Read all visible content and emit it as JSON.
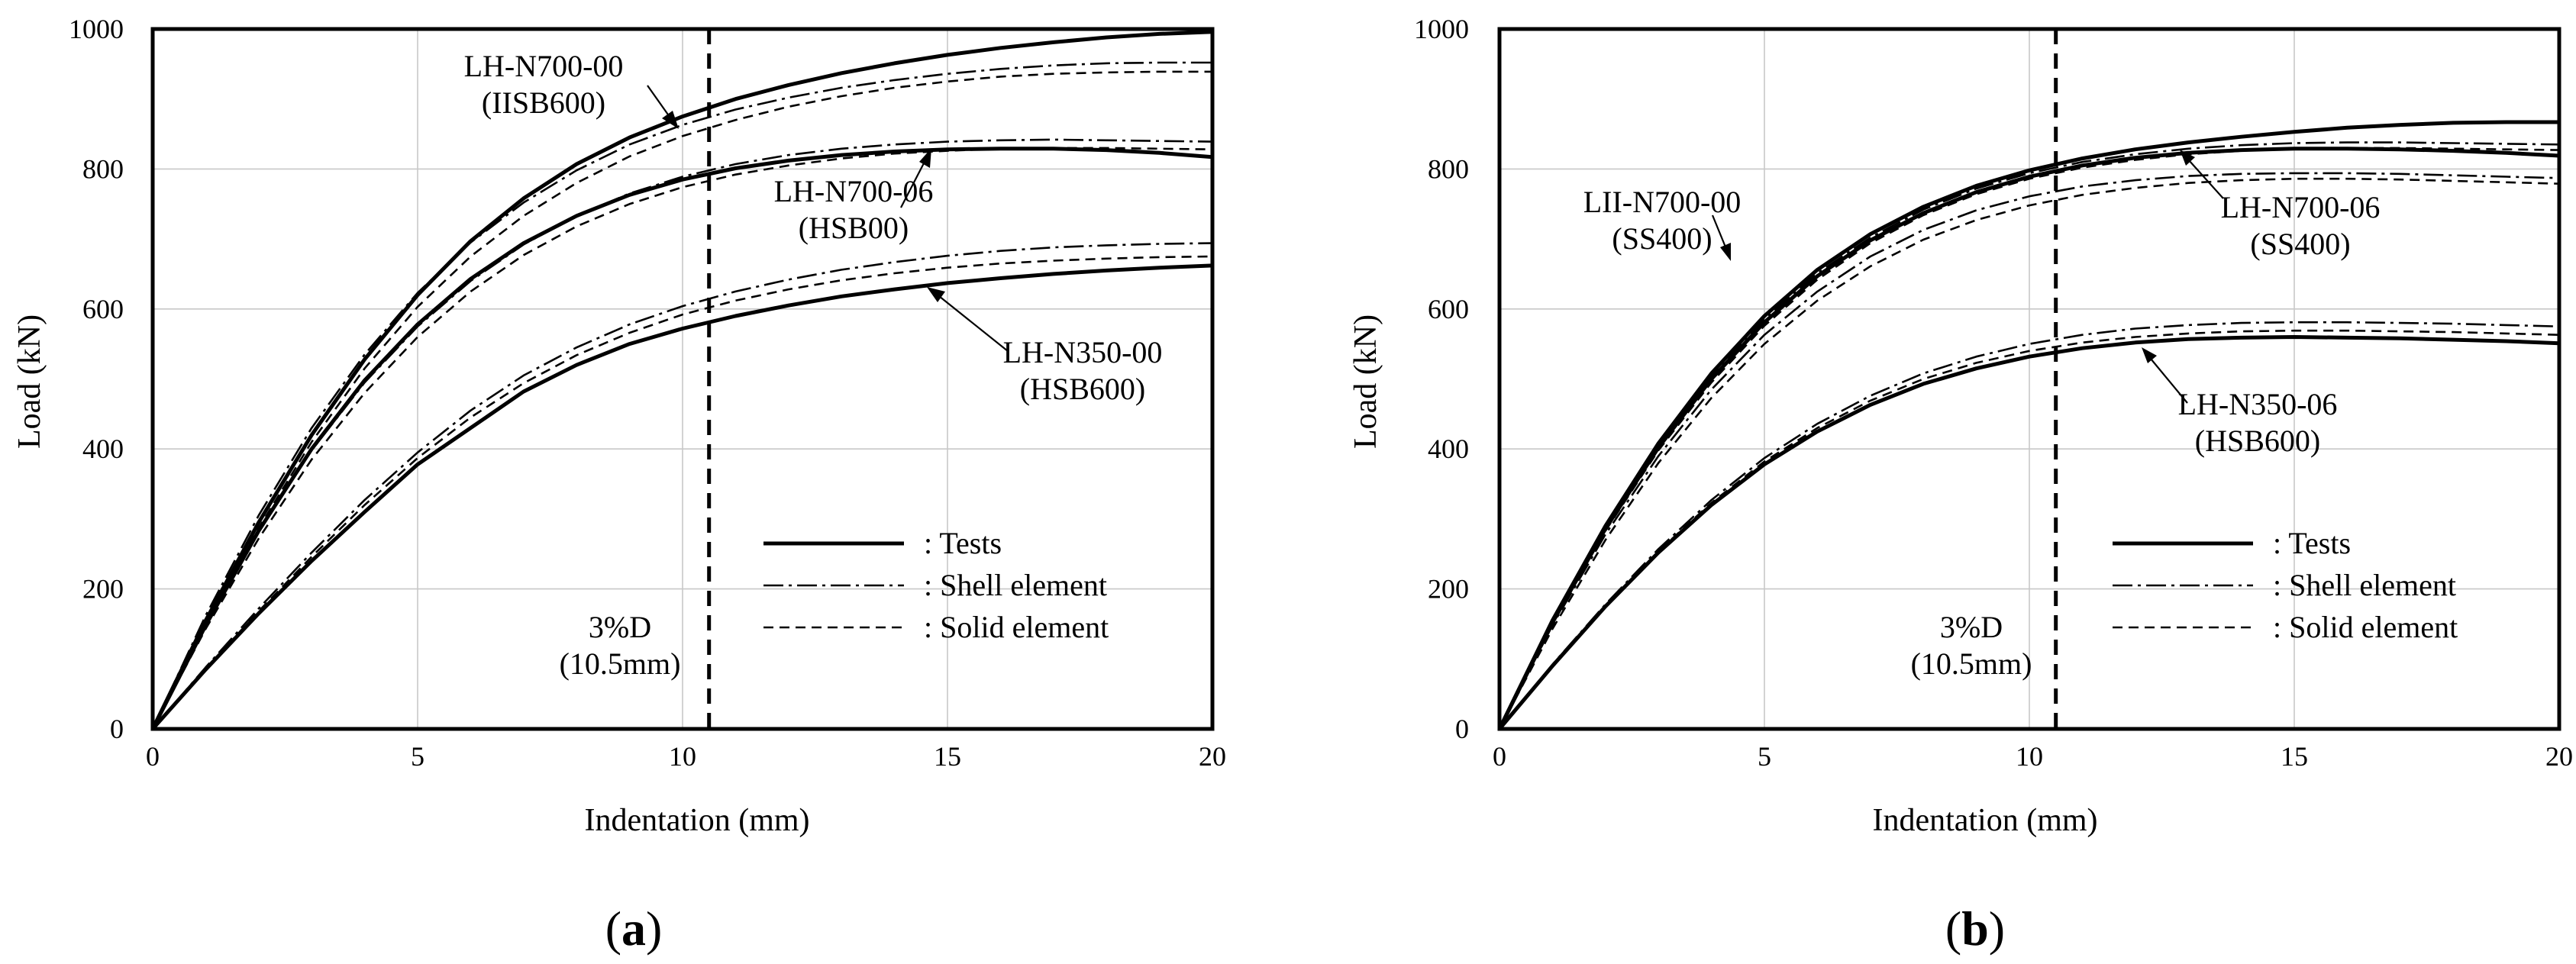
{
  "chart_data": [
    {
      "type": "line",
      "panel_label": "a",
      "title": "",
      "xlabel": "Indentation (mm)",
      "ylabel": "Load (kN)",
      "xlim": [
        0,
        20
      ],
      "ylim": [
        0,
        1000
      ],
      "xticks": [
        "0",
        "5",
        "10",
        "15",
        "20"
      ],
      "yticks": [
        "0",
        "200",
        "400",
        "600",
        "800",
        "1000"
      ],
      "grid": true,
      "reference_line": {
        "x": 10.5,
        "label_line1": "3%D",
        "label_line2": "(10.5mm)"
      },
      "legend": {
        "position": "bottom-right",
        "entries": [
          {
            "style": "tests",
            "label": ": Tests"
          },
          {
            "style": "shell",
            "label": ": Shell element"
          },
          {
            "style": "solid",
            "label": ": Solid element"
          }
        ]
      },
      "x": [
        0,
        1,
        2,
        3,
        4,
        5,
        6,
        7,
        8,
        9,
        10,
        11,
        12,
        13,
        14,
        15,
        16,
        17,
        18,
        19,
        20
      ],
      "series": [
        {
          "name": "LH-N700-00 Tests",
          "style": "tests",
          "values": [
            0,
            155,
            295,
            420,
            528,
            620,
            697,
            758,
            807,
            845,
            875,
            900,
            920,
            937,
            951,
            963,
            973,
            981,
            988,
            993,
            996
          ]
        },
        {
          "name": "LH-N700-00 Shell",
          "style": "shell",
          "values": [
            0,
            162,
            305,
            430,
            535,
            623,
            695,
            752,
            798,
            835,
            863,
            885,
            902,
            916,
            927,
            936,
            943,
            948,
            951,
            952,
            952
          ]
        },
        {
          "name": "LH-N700-00 Solid",
          "style": "solid",
          "values": [
            0,
            150,
            287,
            410,
            515,
            603,
            675,
            733,
            780,
            818,
            847,
            870,
            889,
            904,
            916,
            925,
            932,
            936,
            938,
            939,
            939
          ]
        },
        {
          "name": "LH-N700-06 Tests",
          "style": "tests",
          "values": [
            0,
            148,
            283,
            400,
            498,
            578,
            643,
            694,
            733,
            763,
            785,
            801,
            812,
            820,
            825,
            828,
            829,
            829,
            827,
            823,
            817
          ]
        },
        {
          "name": "LH-N700-06 Shell",
          "style": "shell",
          "values": [
            0,
            150,
            283,
            398,
            495,
            575,
            640,
            692,
            733,
            765,
            789,
            807,
            820,
            829,
            835,
            839,
            841,
            842,
            841,
            840,
            839
          ]
        },
        {
          "name": "LH-N700-06 Solid",
          "style": "solid",
          "values": [
            0,
            143,
            272,
            385,
            480,
            560,
            625,
            677,
            718,
            750,
            774,
            792,
            805,
            815,
            822,
            826,
            829,
            830,
            830,
            829,
            828
          ]
        },
        {
          "name": "LH-N350-00 Tests",
          "style": "tests",
          "values": [
            0,
            85,
            165,
            240,
            310,
            378,
            430,
            482,
            520,
            550,
            572,
            590,
            605,
            618,
            628,
            637,
            644,
            650,
            655,
            659,
            662
          ]
        },
        {
          "name": "LH-N350-00 Shell",
          "style": "shell",
          "values": [
            0,
            88,
            172,
            252,
            327,
            395,
            455,
            505,
            545,
            578,
            604,
            625,
            642,
            656,
            667,
            676,
            683,
            688,
            691,
            693,
            694
          ]
        },
        {
          "name": "LH-N350-00 Solid",
          "style": "solid",
          "values": [
            0,
            86,
            168,
            246,
            320,
            387,
            445,
            494,
            534,
            566,
            592,
            612,
            628,
            641,
            651,
            659,
            665,
            669,
            672,
            674,
            675
          ]
        }
      ],
      "annotations": [
        {
          "line1": "LH-N700-00",
          "line2": "(IISB600)",
          "target": [
            9.9,
            870
          ]
        },
        {
          "line1": "LH-N700-06",
          "line2": "(HSB00)",
          "target": [
            15.4,
            830
          ]
        },
        {
          "line1": "LH-N350-00",
          "line2": "(HSB600)",
          "target": [
            14.5,
            628
          ]
        }
      ]
    },
    {
      "type": "line",
      "panel_label": "b",
      "title": "",
      "xlabel": "Indentation (mm)",
      "ylabel": "Load (kN)",
      "xlim": [
        0,
        20
      ],
      "ylim": [
        0,
        1000
      ],
      "xticks": [
        "0",
        "5",
        "10",
        "15",
        "20"
      ],
      "yticks": [
        "0",
        "200",
        "400",
        "600",
        "800",
        "1000"
      ],
      "grid": true,
      "reference_line": {
        "x": 10.5,
        "label_line1": "3%D",
        "label_line2": "(10.5mm)"
      },
      "legend": {
        "position": "bottom-right",
        "entries": [
          {
            "style": "tests",
            "label": ": Tests"
          },
          {
            "style": "shell",
            "label": ": Shell element"
          },
          {
            "style": "solid",
            "label": ": Solid element"
          }
        ]
      },
      "x": [
        0,
        1,
        2,
        3,
        4,
        5,
        6,
        7,
        8,
        9,
        10,
        11,
        12,
        13,
        14,
        15,
        16,
        17,
        18,
        19,
        20
      ],
      "series": [
        {
          "name": "LH-N700-00 Tests",
          "style": "tests",
          "values": [
            0,
            155,
            290,
            408,
            508,
            590,
            656,
            707,
            746,
            776,
            798,
            815,
            828,
            838,
            846,
            853,
            859,
            863,
            866,
            867,
            867
          ]
        },
        {
          "name": "LH-N700-00 Shell",
          "style": "shell",
          "values": [
            0,
            153,
            287,
            404,
            503,
            585,
            651,
            702,
            742,
            772,
            794,
            810,
            821,
            829,
            834,
            837,
            838,
            838,
            837,
            836,
            835
          ]
        },
        {
          "name": "LH-N700-00 Solid",
          "style": "solid",
          "values": [
            0,
            150,
            283,
            398,
            495,
            576,
            642,
            694,
            734,
            764,
            786,
            802,
            813,
            821,
            826,
            829,
            830,
            830,
            829,
            828,
            827
          ]
        },
        {
          "name": "LH-N700-06 Tests",
          "style": "tests",
          "values": [
            0,
            152,
            286,
            402,
            500,
            581,
            647,
            698,
            737,
            767,
            789,
            805,
            816,
            823,
            827,
            829,
            829,
            828,
            826,
            823,
            819
          ]
        },
        {
          "name": "LH-N700-06 Shell",
          "style": "shell",
          "values": [
            0,
            148,
            278,
            390,
            485,
            563,
            625,
            675,
            713,
            741,
            761,
            775,
            784,
            790,
            793,
            794,
            794,
            793,
            791,
            789,
            787
          ]
        },
        {
          "name": "LH-N700-06 Solid",
          "style": "solid",
          "values": [
            0,
            143,
            270,
            380,
            473,
            550,
            612,
            661,
            699,
            727,
            748,
            763,
            773,
            780,
            784,
            786,
            786,
            785,
            783,
            781,
            779
          ]
        },
        {
          "name": "LH-N350-06 Tests",
          "style": "tests",
          "values": [
            0,
            90,
            175,
            252,
            320,
            378,
            425,
            463,
            493,
            515,
            532,
            544,
            552,
            557,
            559,
            560,
            559,
            558,
            556,
            554,
            551
          ]
        },
        {
          "name": "LH-N350-06 Shell",
          "style": "shell",
          "values": [
            0,
            92,
            178,
            257,
            327,
            387,
            436,
            476,
            508,
            532,
            550,
            563,
            572,
            577,
            580,
            581,
            581,
            580,
            579,
            577,
            575
          ]
        },
        {
          "name": "LH-N350-06 Solid",
          "style": "solid",
          "values": [
            0,
            91,
            176,
            254,
            323,
            382,
            430,
            469,
            500,
            523,
            540,
            552,
            560,
            565,
            568,
            569,
            569,
            568,
            567,
            565,
            563
          ]
        }
      ],
      "annotations": [
        {
          "line1": "LII-N700-00",
          "line2": "(SS400)",
          "target": [
            6.2,
            660
          ]
        },
        {
          "line1": "LH-N700-06",
          "line2": "(SS400)",
          "target": [
            14.8,
            818
          ]
        },
        {
          "line1": "LH-N350-06",
          "line2": "(HSB600)",
          "target": [
            13.0,
            568
          ]
        }
      ]
    }
  ]
}
